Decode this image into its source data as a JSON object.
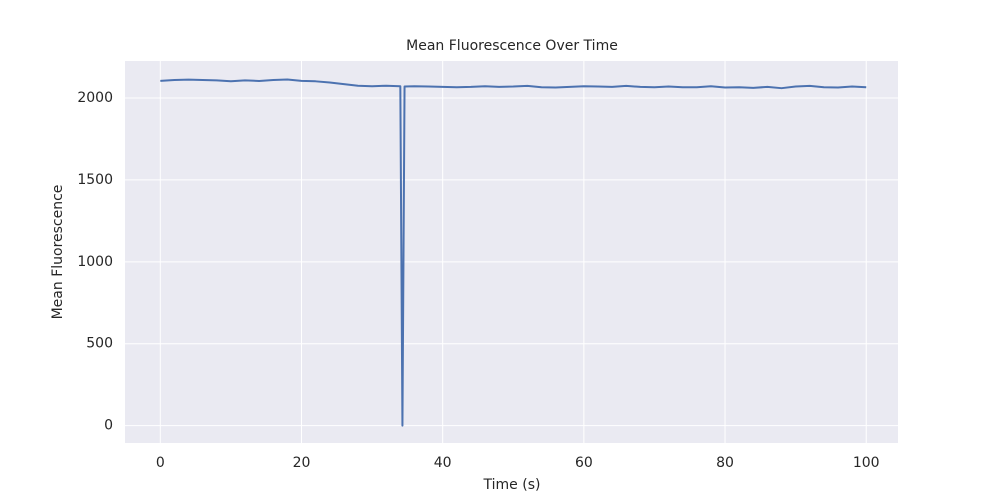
{
  "chart_data": {
    "type": "line",
    "title": "Mean Fluorescence Over Time",
    "x_label": "Time (s)",
    "y_label": "Mean Fluorescence",
    "x": [
      0,
      2,
      4,
      6,
      8,
      10,
      12,
      14,
      16,
      18,
      20,
      22,
      24,
      26,
      28,
      30,
      32,
      34,
      34.3,
      34.6,
      36,
      38,
      40,
      42,
      44,
      46,
      48,
      50,
      52,
      54,
      56,
      58,
      60,
      62,
      64,
      66,
      68,
      70,
      72,
      74,
      76,
      78,
      80,
      82,
      84,
      86,
      88,
      90,
      92,
      94,
      96,
      98,
      100
    ],
    "values": [
      2105,
      2110,
      2112,
      2110,
      2108,
      2102,
      2108,
      2104,
      2110,
      2113,
      2105,
      2102,
      2095,
      2085,
      2075,
      2072,
      2075,
      2072,
      0,
      2070,
      2072,
      2070,
      2068,
      2066,
      2068,
      2072,
      2068,
      2070,
      2074,
      2066,
      2064,
      2068,
      2072,
      2070,
      2068,
      2074,
      2068,
      2066,
      2070,
      2066,
      2066,
      2072,
      2064,
      2066,
      2062,
      2068,
      2060,
      2070,
      2074,
      2066,
      2064,
      2070,
      2066
    ],
    "color": "#4c72b0",
    "xlim": [
      -5,
      104.5
    ],
    "ylim": [
      -106,
      2226
    ],
    "xticks": [
      0,
      20,
      40,
      60,
      80,
      100
    ],
    "yticks": [
      0,
      500,
      1000,
      1500,
      2000
    ],
    "grid": true
  }
}
